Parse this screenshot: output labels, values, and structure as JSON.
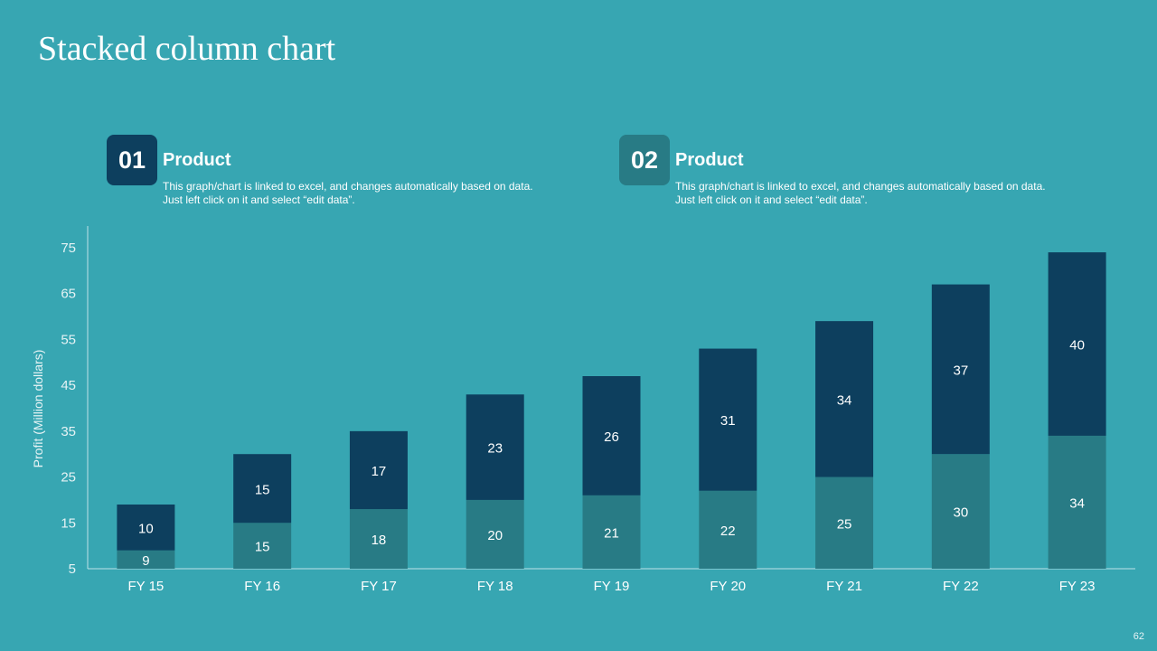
{
  "slide": {
    "title": "Stacked column chart",
    "page_number": "62"
  },
  "callouts": [
    {
      "number": "01",
      "heading": "Product",
      "description": "This graph/chart is linked to excel, and changes automatically based on data. Just left click on it and select “edit data”.",
      "badge_color": "#0d3f5e"
    },
    {
      "number": "02",
      "heading": "Product",
      "description": "This graph/chart is linked to excel, and changes automatically based on data. Just left click on it and select “edit data”.",
      "badge_color": "#287b85"
    }
  ],
  "chart_data": {
    "type": "bar",
    "stacked": true,
    "categories": [
      "FY 15",
      "FY 16",
      "FY 17",
      "FY 18",
      "FY 19",
      "FY 20",
      "FY 21",
      "FY 22",
      "FY 23"
    ],
    "series": [
      {
        "values": [
          9,
          15,
          18,
          20,
          21,
          22,
          25,
          30,
          34
        ],
        "color": "#287b85"
      },
      {
        "values": [
          10,
          15,
          17,
          23,
          26,
          31,
          34,
          37,
          40
        ],
        "color": "#0d3f5e"
      }
    ],
    "ylabel": "Profit  (Million dollars)",
    "yticks": [
      5,
      15,
      25,
      35,
      45,
      55,
      65,
      75
    ],
    "ylim": [
      5,
      75
    ],
    "grid": false
  }
}
